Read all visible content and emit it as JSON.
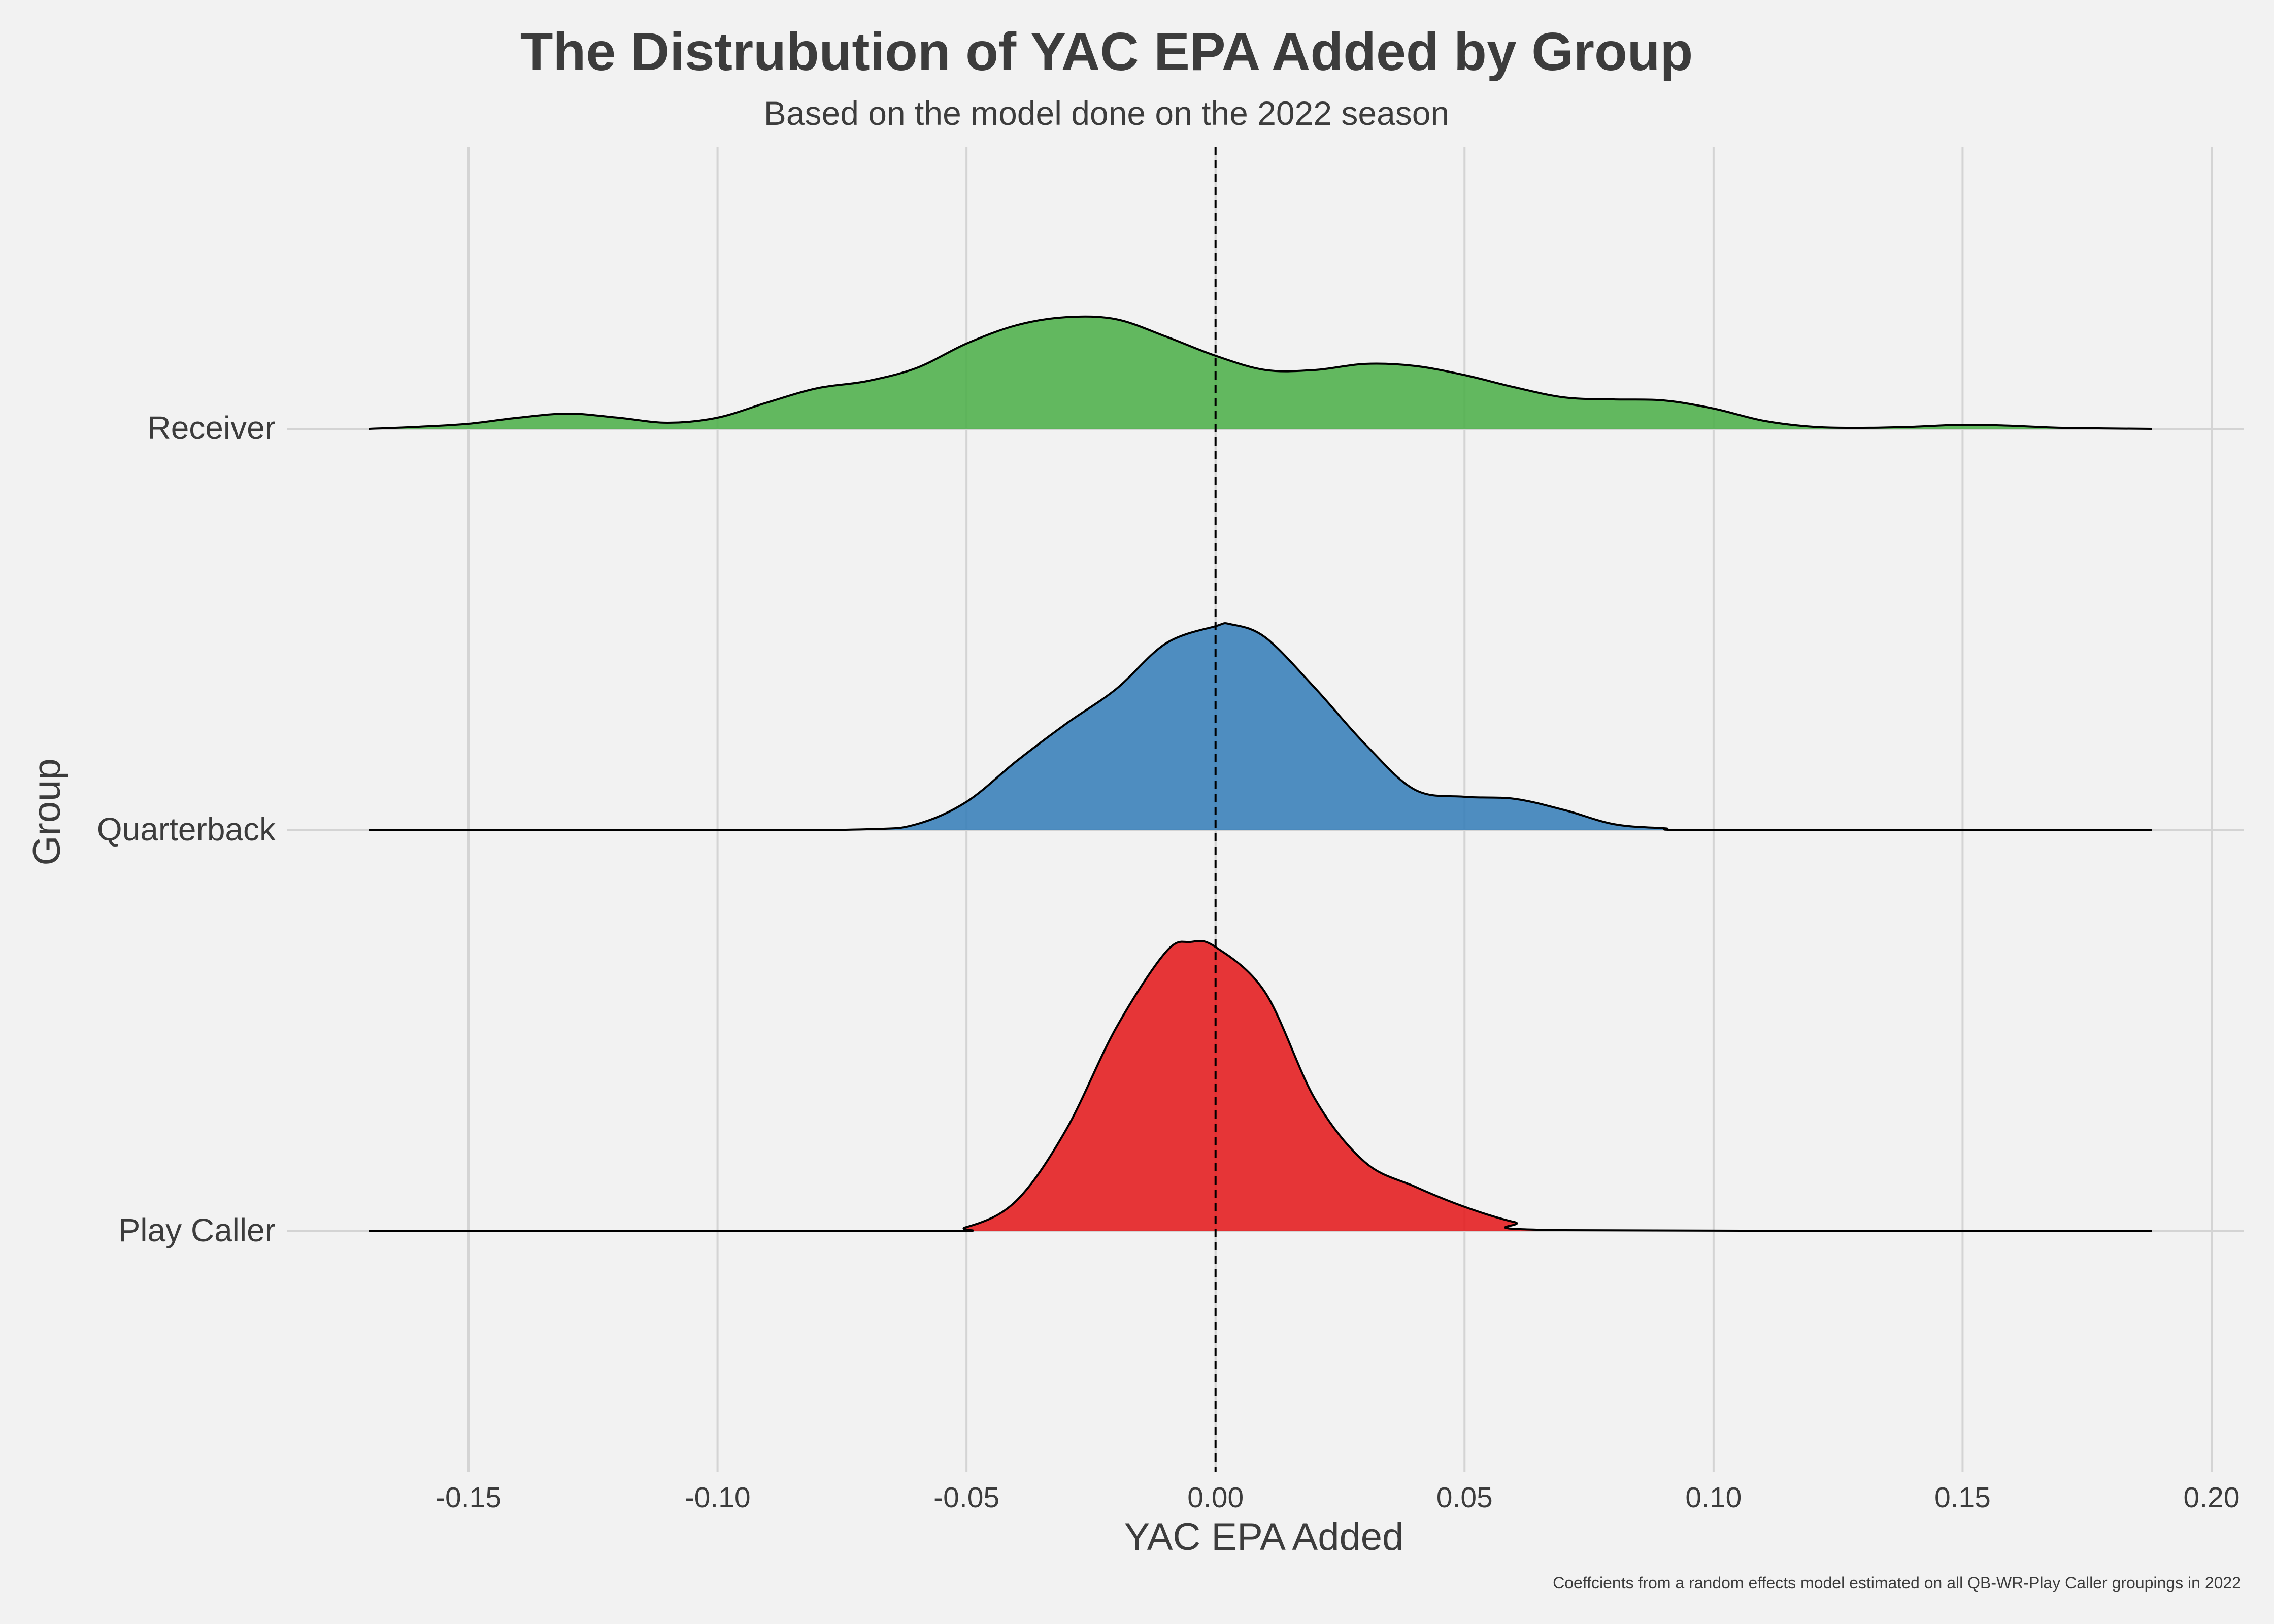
{
  "chart_data": {
    "type": "ridgeline",
    "title": "The Distrubution of YAC EPA Added by Group",
    "subtitle": "Based on the model done on the 2022 season",
    "xlabel": "YAC EPA Added",
    "ylabel": "Group",
    "caption": "Coeffcients from a random effects model estimated on all QB-WR-Play Caller groupings in 2022",
    "xlim": [
      -0.17,
      0.188
    ],
    "x_ticks": [
      "-0.15",
      "-0.10",
      "-0.05",
      "0.00",
      "0.05",
      "0.10",
      "0.15",
      "0.20"
    ],
    "x_tick_values": [
      -0.15,
      -0.1,
      -0.05,
      0.0,
      0.05,
      0.1,
      0.15,
      0.2
    ],
    "reference_line": {
      "x": 0.0,
      "style": "dashed"
    },
    "grid": "vertical",
    "series": [
      {
        "name": "Receiver",
        "color": "#4daf4a",
        "x": [
          -0.17,
          -0.16,
          -0.15,
          -0.14,
          -0.13,
          -0.12,
          -0.11,
          -0.1,
          -0.09,
          -0.08,
          -0.07,
          -0.06,
          -0.05,
          -0.04,
          -0.03,
          -0.02,
          -0.01,
          0.0,
          0.01,
          0.02,
          0.03,
          0.04,
          0.05,
          0.06,
          0.07,
          0.08,
          0.09,
          0.1,
          0.11,
          0.12,
          0.13,
          0.14,
          0.15,
          0.16,
          0.17,
          0.188
        ],
        "density": [
          0.0,
          0.02,
          0.05,
          0.11,
          0.15,
          0.11,
          0.06,
          0.11,
          0.26,
          0.4,
          0.47,
          0.6,
          0.84,
          1.02,
          1.1,
          1.08,
          0.91,
          0.72,
          0.58,
          0.58,
          0.64,
          0.62,
          0.53,
          0.41,
          0.31,
          0.29,
          0.28,
          0.2,
          0.08,
          0.02,
          0.01,
          0.02,
          0.04,
          0.03,
          0.01,
          0.0
        ]
      },
      {
        "name": "Quarterback",
        "color": "#377eb8",
        "x": [
          -0.17,
          -0.1,
          -0.07,
          -0.06,
          -0.05,
          -0.04,
          -0.03,
          -0.02,
          -0.01,
          0.0,
          0.003,
          0.01,
          0.02,
          0.03,
          0.04,
          0.05,
          0.06,
          0.07,
          0.08,
          0.09,
          0.1,
          0.188
        ],
        "density": [
          0.0,
          0.0,
          0.01,
          0.06,
          0.28,
          0.68,
          1.05,
          1.39,
          1.84,
          2.01,
          2.03,
          1.9,
          1.4,
          0.85,
          0.4,
          0.33,
          0.31,
          0.2,
          0.06,
          0.02,
          0.0,
          0.0
        ]
      },
      {
        "name": "Play Caller",
        "color": "#e41a1c",
        "x": [
          -0.17,
          -0.06,
          -0.05,
          -0.04,
          -0.03,
          -0.02,
          -0.01,
          -0.005,
          0.0,
          0.01,
          0.02,
          0.03,
          0.04,
          0.05,
          0.06,
          0.07,
          0.188
        ],
        "density": [
          0.0,
          0.0,
          0.04,
          0.3,
          1.0,
          2.0,
          2.75,
          2.85,
          2.8,
          2.35,
          1.3,
          0.68,
          0.44,
          0.24,
          0.09,
          0.01,
          0.0
        ]
      }
    ]
  }
}
